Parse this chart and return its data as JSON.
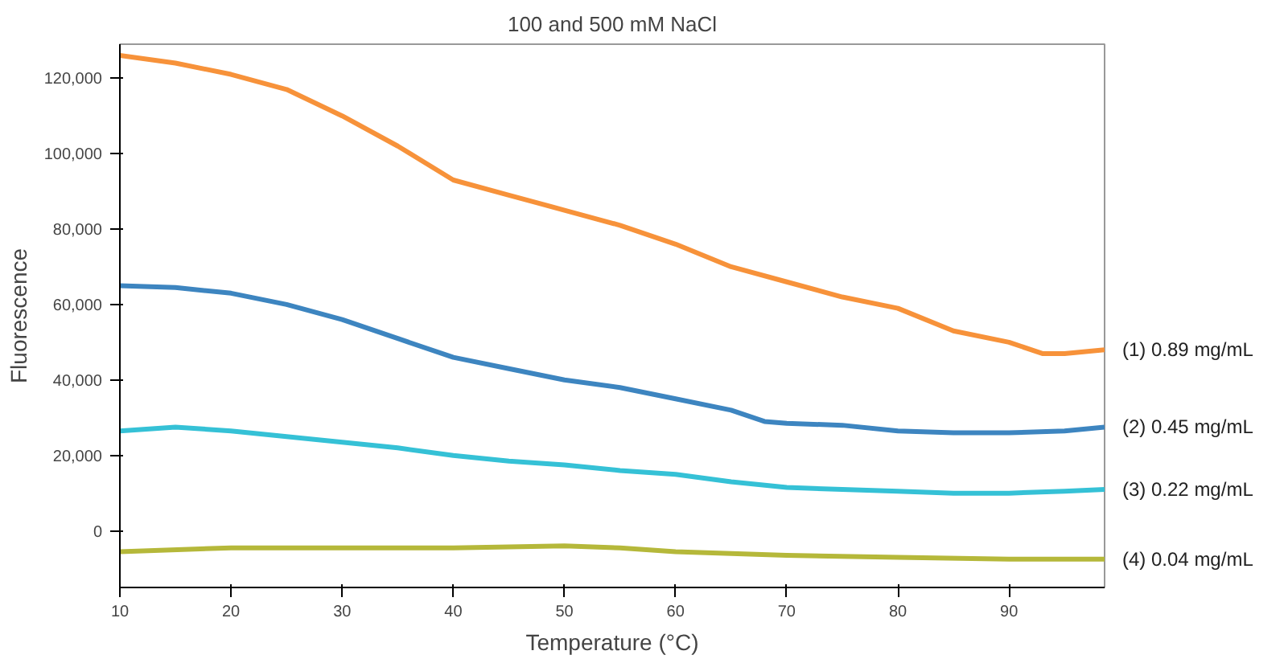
{
  "chart_data": {
    "type": "line",
    "title": "100 and 500 mM NaCl",
    "xlabel": "Temperature (°C)",
    "ylabel": "Fluorescence",
    "xlim": [
      10,
      98.6
    ],
    "xticks": [
      10,
      20,
      30,
      40,
      50,
      60,
      70,
      80,
      90
    ],
    "ylim": [
      -15000,
      129000
    ],
    "yticks": [
      0,
      {
        "value": 20000,
        "label": "20,000"
      },
      {
        "value": 40000,
        "label": "40,000"
      },
      {
        "value": 60000,
        "label": "60,000"
      },
      {
        "value": 80000,
        "label": "80,000"
      },
      {
        "value": 100000,
        "label": "100,000"
      },
      {
        "value": 120000,
        "label": "120,000"
      }
    ],
    "grid": false,
    "marker": "none",
    "line_style": "solid",
    "series": [
      {
        "name": "(1) 0.89 mg/mL",
        "color": "#f7923a",
        "x": [
          10,
          15,
          20,
          25,
          30,
          35,
          40,
          45,
          50,
          55,
          60,
          65,
          70,
          75,
          80,
          85,
          90,
          93,
          95,
          98.6
        ],
        "values": [
          126000,
          124000,
          121000,
          117000,
          110000,
          102000,
          93000,
          89000,
          85000,
          81000,
          76000,
          70000,
          66000,
          62000,
          59000,
          53000,
          50000,
          47000,
          47000,
          48000
        ]
      },
      {
        "name": "(2) 0.45 mg/mL",
        "color": "#3d85c0",
        "x": [
          10,
          15,
          20,
          25,
          30,
          35,
          40,
          45,
          50,
          55,
          60,
          65,
          68,
          70,
          75,
          80,
          85,
          90,
          95,
          98.6
        ],
        "values": [
          65000,
          64500,
          63000,
          60000,
          56000,
          51000,
          46000,
          43000,
          40000,
          38000,
          35000,
          32000,
          29000,
          28500,
          28000,
          26500,
          26000,
          26000,
          26500,
          27500
        ]
      },
      {
        "name": "(3) 0.22 mg/mL",
        "color": "#35c1d6",
        "x": [
          10,
          15,
          20,
          25,
          30,
          35,
          40,
          45,
          50,
          55,
          60,
          65,
          70,
          75,
          80,
          85,
          90,
          95,
          98.6
        ],
        "values": [
          26500,
          27500,
          26500,
          25000,
          23500,
          22000,
          20000,
          18500,
          17500,
          16000,
          15000,
          13000,
          11500,
          11000,
          10500,
          10000,
          10000,
          10500,
          11000
        ]
      },
      {
        "name": "(4) 0.04 mg/mL",
        "color": "#b5b83a",
        "x": [
          10,
          20,
          30,
          40,
          50,
          55,
          60,
          70,
          80,
          90,
          98.6
        ],
        "values": [
          -5500,
          -4500,
          -4500,
          -4500,
          -4000,
          -4500,
          -5500,
          -6500,
          -7000,
          -7500,
          -7500
        ]
      }
    ]
  }
}
